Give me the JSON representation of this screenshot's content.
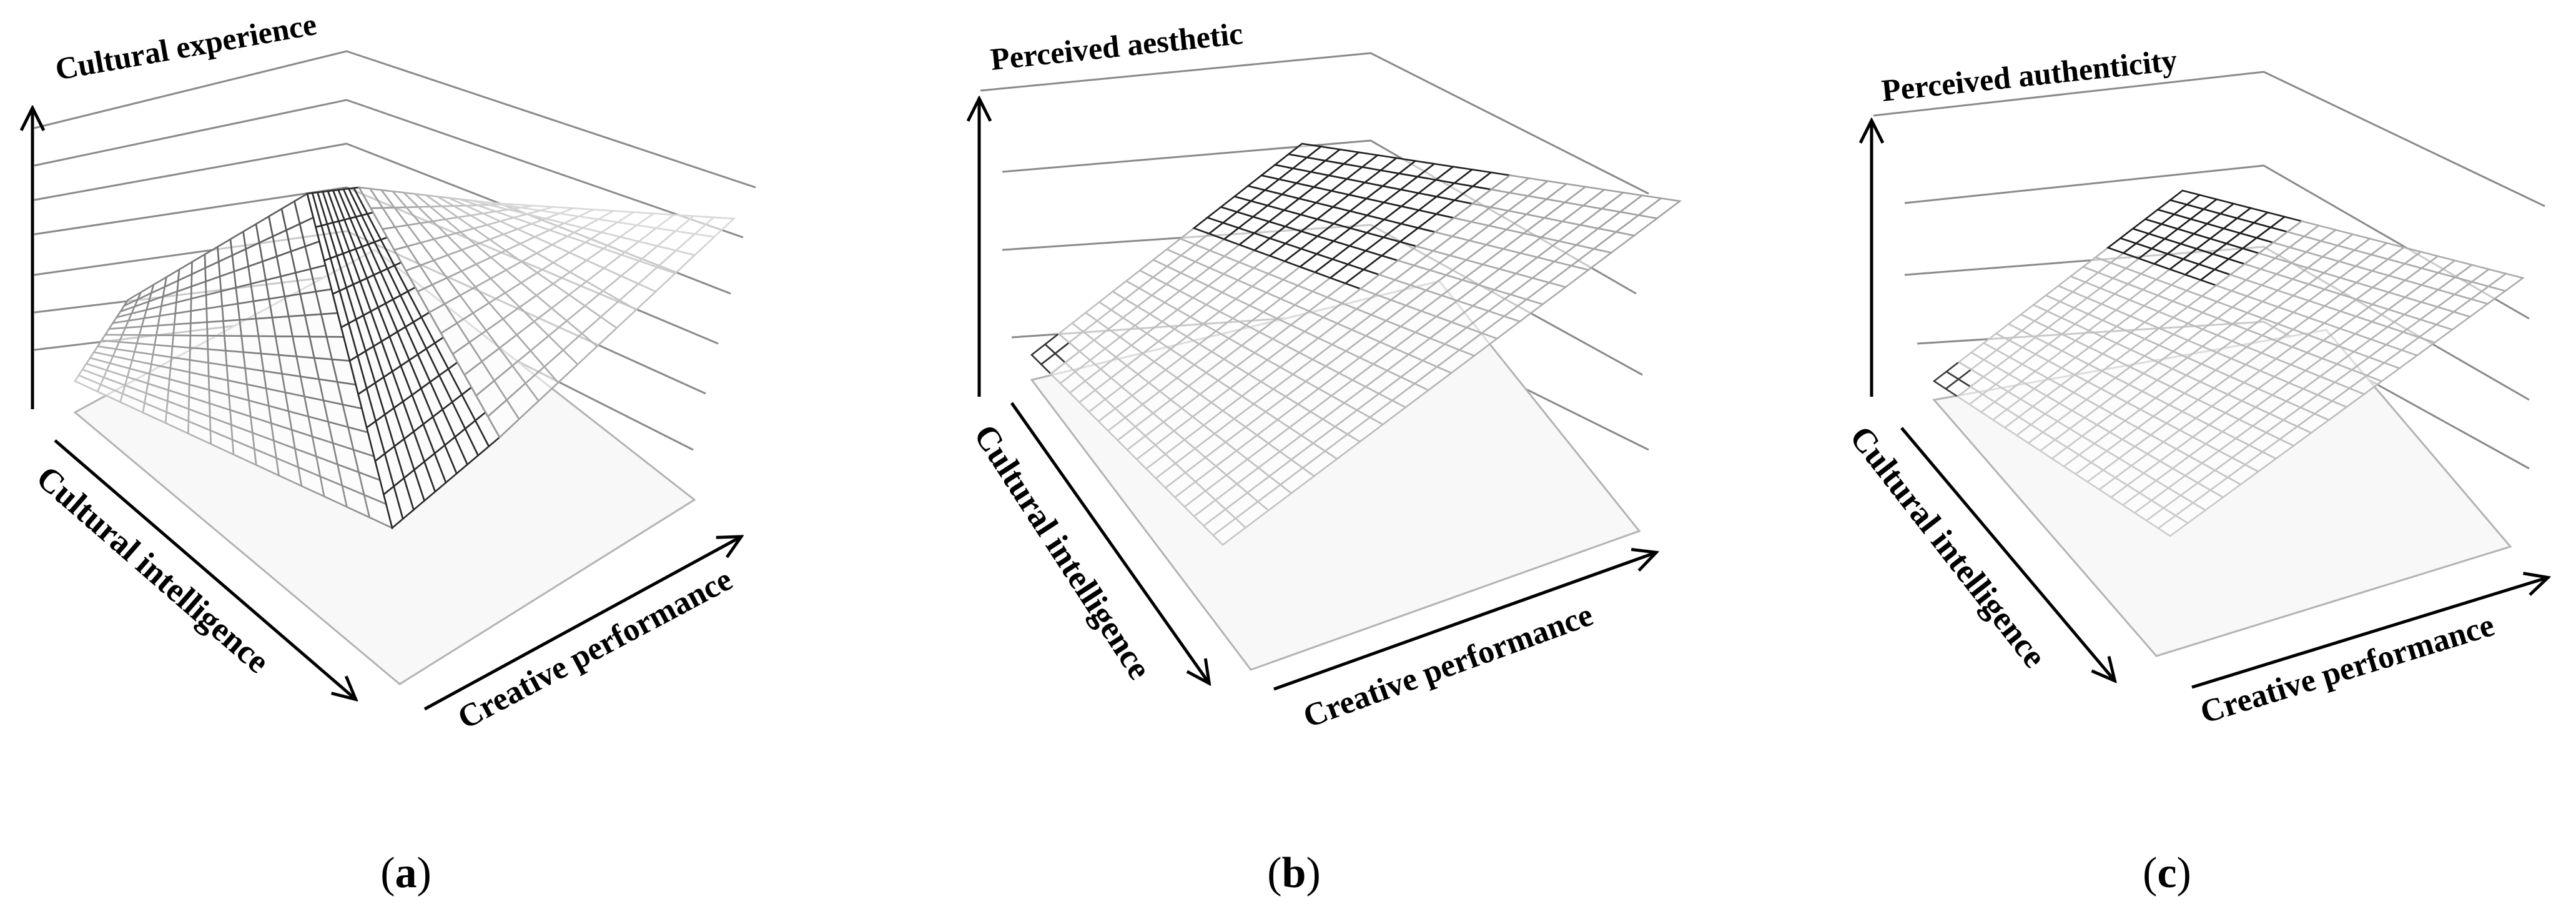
{
  "chart_data": [
    {
      "type": "surface",
      "panel_label": "a",
      "zlabel": "Cultural experience",
      "xlabel": "Cultural intelligence",
      "ylabel": "Creative performance",
      "surface_shape": "ridge",
      "peak_position": "center",
      "shading": "response surface mesh; darker cells on the high-value side"
    },
    {
      "type": "surface",
      "panel_label": "b",
      "zlabel": "Perceived aesthetic",
      "xlabel": "Cultural intelligence",
      "ylabel": "Creative performance",
      "surface_shape": "rising plane",
      "peak_position": "high creative performance",
      "shading": "response surface mesh; darker cells at high creative performance"
    },
    {
      "type": "surface",
      "panel_label": "c",
      "zlabel": "Perceived authenticity",
      "xlabel": "Cultural intelligence",
      "ylabel": "Creative performance",
      "surface_shape": "rising plane",
      "peak_position": "high creative performance",
      "shading": "response surface mesh; darker cells at high creative performance"
    }
  ],
  "labels": {
    "a": {
      "open": "(",
      "letter": "a",
      "close": ")"
    },
    "b": {
      "open": "(",
      "letter": "b",
      "close": ")"
    },
    "c": {
      "open": "(",
      "letter": "c",
      "close": ")"
    }
  }
}
